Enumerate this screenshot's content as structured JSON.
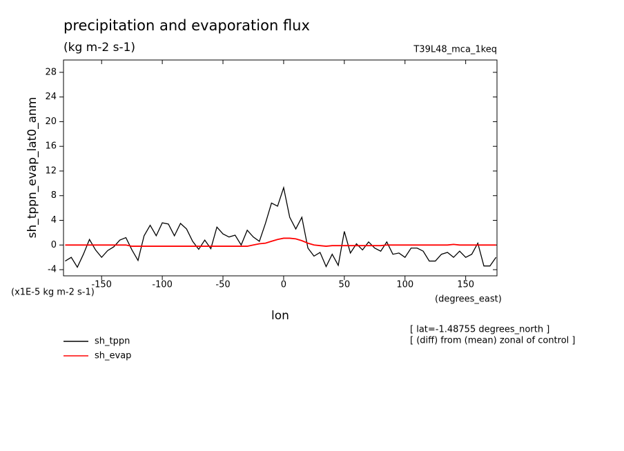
{
  "chart_data": {
    "type": "line",
    "title": "precipitation and evaporation flux",
    "subtitle": "(kg m-2 s-1)",
    "run_label": "T39L48_mca_1keq",
    "ylabel": "sh_tppn_evap_lat0_anm",
    "xlabel": "lon",
    "y_units": "(x1E-5 kg m-2 s-1)",
    "x_units": "(degrees_east)",
    "notes": [
      "[ lat=-1.48755 degrees_north ]",
      "[ (diff) from (mean) zonal of control ]"
    ],
    "x": [
      -180,
      -175,
      -170,
      -165,
      -160,
      -155,
      -150,
      -145,
      -140,
      -135,
      -130,
      -125,
      -120,
      -115,
      -110,
      -105,
      -100,
      -95,
      -90,
      -85,
      -80,
      -75,
      -70,
      -65,
      -60,
      -55,
      -50,
      -45,
      -40,
      -35,
      -30,
      -25,
      -20,
      -15,
      -10,
      -5,
      0,
      5,
      10,
      15,
      20,
      25,
      30,
      35,
      40,
      45,
      50,
      55,
      60,
      65,
      70,
      75,
      80,
      85,
      90,
      95,
      100,
      105,
      110,
      115,
      120,
      125,
      130,
      135,
      140,
      145,
      150,
      155,
      160,
      165,
      170,
      175
    ],
    "series": [
      {
        "name": "sh_tppn",
        "color": "#000000",
        "values": [
          -2.6,
          -2.0,
          -3.6,
          -1.5,
          0.9,
          -0.8,
          -2.0,
          -0.9,
          -0.3,
          0.8,
          1.2,
          -0.8,
          -2.5,
          1.5,
          3.2,
          1.5,
          3.6,
          3.4,
          1.5,
          3.5,
          2.6,
          0.6,
          -0.7,
          0.8,
          -0.6,
          2.9,
          1.8,
          1.3,
          1.6,
          0.0,
          2.4,
          1.3,
          0.6,
          3.5,
          6.8,
          6.3,
          9.3,
          4.5,
          2.6,
          4.5,
          -0.5,
          -1.8,
          -1.2,
          -3.5,
          -1.5,
          -3.3,
          2.2,
          -1.3,
          0.2,
          -0.8,
          0.5,
          -0.5,
          -1.0,
          0.5,
          -1.5,
          -1.3,
          -2.0,
          -0.5,
          -0.5,
          -1.0,
          -2.6,
          -2.6,
          -1.5,
          -1.2,
          -2.0,
          -1.0,
          -2.0,
          -1.5,
          0.3,
          -3.4,
          -3.4,
          -2.0
        ]
      },
      {
        "name": "sh_evap",
        "color": "#ff0000",
        "values": [
          0,
          0,
          0,
          0,
          0,
          0,
          0,
          0,
          0,
          0,
          0,
          -0.2,
          -0.2,
          -0.2,
          -0.2,
          -0.2,
          -0.2,
          -0.2,
          -0.2,
          -0.2,
          -0.2,
          -0.2,
          -0.2,
          -0.2,
          -0.2,
          -0.2,
          -0.2,
          -0.2,
          -0.2,
          -0.2,
          -0.2,
          0.0,
          0.2,
          0.3,
          0.6,
          0.9,
          1.1,
          1.1,
          1.0,
          0.7,
          0.3,
          0.0,
          -0.1,
          -0.2,
          -0.1,
          -0.1,
          -0.1,
          -0.1,
          -0.1,
          -0.1,
          -0.1,
          -0.1,
          -0.1,
          0,
          0,
          0,
          0,
          0,
          0,
          0,
          0,
          0,
          0,
          0,
          0.1,
          0,
          0,
          0,
          0,
          0,
          0,
          0
        ]
      }
    ],
    "xlim": [
      -181.4,
      175.8
    ],
    "ylim": [
      -5,
      30
    ],
    "xticks": [
      -150,
      -100,
      -50,
      0,
      50,
      100,
      150
    ],
    "yticks": [
      -4,
      0,
      4,
      8,
      12,
      16,
      20,
      24,
      28
    ]
  }
}
